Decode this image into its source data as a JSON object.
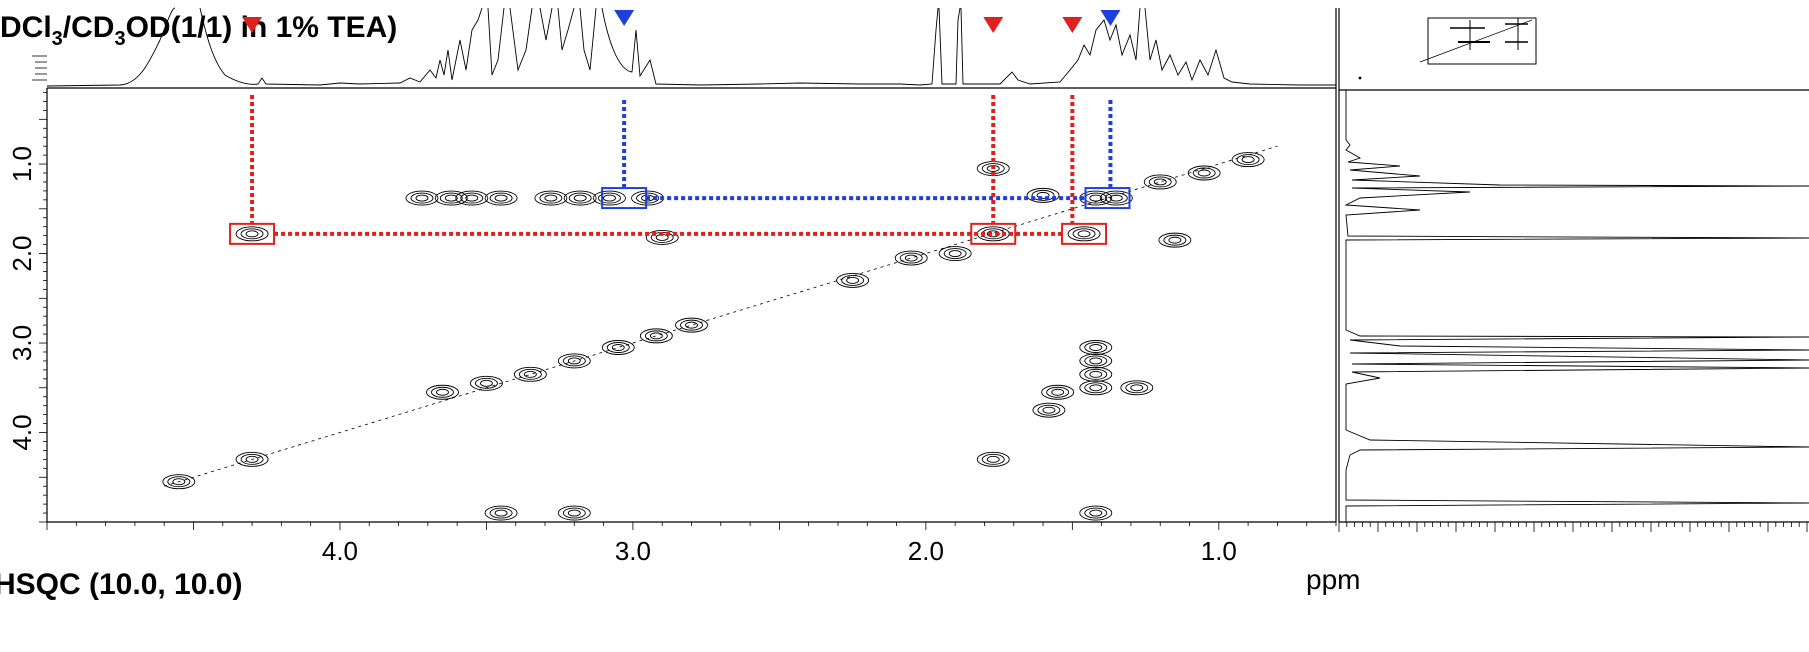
{
  "header": {
    "title_main": "DCl",
    "title_sub1": "3",
    "title_mid": "/CD",
    "title_sub2": "3",
    "title_end": "OD(1/1) in 1% TEA)"
  },
  "footer": {
    "text": "HSQC (10.0, 10.0)"
  },
  "chart_data": {
    "type": "scatter",
    "subtype": "2D COSY NMR contour plot",
    "x_axis": {
      "unit": "ppm",
      "reversed": true,
      "range": [
        5.0,
        0.6
      ],
      "ticks": [
        4.0,
        3.0,
        2.0,
        1.0
      ],
      "tick_labels": [
        "4.0",
        "3.0",
        "2.0",
        "1.0"
      ]
    },
    "y_axis": {
      "range": [
        0.15,
        5.0
      ],
      "ticks": [
        1.0,
        2.0,
        3.0,
        4.0
      ],
      "tick_labels": [
        "1.0",
        "2.0",
        "3.0",
        "4.0"
      ]
    },
    "cross_peaks": [
      {
        "x": 3.55,
        "y": 1.38
      },
      {
        "x": 3.45,
        "y": 1.38
      },
      {
        "x": 3.28,
        "y": 1.38
      },
      {
        "x": 3.18,
        "y": 1.38
      },
      {
        "x": 3.62,
        "y": 1.38
      },
      {
        "x": 3.72,
        "y": 1.38
      },
      {
        "x": 3.08,
        "y": 1.38
      },
      {
        "x": 2.95,
        "y": 1.38
      },
      {
        "x": 1.42,
        "y": 1.38
      },
      {
        "x": 1.35,
        "y": 1.38
      },
      {
        "x": 4.3,
        "y": 1.78
      },
      {
        "x": 1.77,
        "y": 1.78
      },
      {
        "x": 1.46,
        "y": 1.78
      },
      {
        "x": 1.77,
        "y": 1.05
      },
      {
        "x": 2.9,
        "y": 1.82
      },
      {
        "x": 2.05,
        "y": 2.05
      },
      {
        "x": 1.9,
        "y": 2.0
      },
      {
        "x": 2.25,
        "y": 2.3
      },
      {
        "x": 3.2,
        "y": 3.2
      },
      {
        "x": 3.05,
        "y": 3.05
      },
      {
        "x": 3.35,
        "y": 3.35
      },
      {
        "x": 3.5,
        "y": 3.45
      },
      {
        "x": 3.65,
        "y": 3.55
      },
      {
        "x": 2.92,
        "y": 2.92
      },
      {
        "x": 2.8,
        "y": 2.8
      },
      {
        "x": 1.42,
        "y": 3.05
      },
      {
        "x": 1.42,
        "y": 3.2
      },
      {
        "x": 1.42,
        "y": 3.35
      },
      {
        "x": 1.42,
        "y": 3.5
      },
      {
        "x": 1.28,
        "y": 3.5
      },
      {
        "x": 1.55,
        "y": 3.55
      },
      {
        "x": 1.58,
        "y": 3.75
      },
      {
        "x": 4.3,
        "y": 4.3
      },
      {
        "x": 4.55,
        "y": 4.55
      },
      {
        "x": 1.77,
        "y": 4.3
      },
      {
        "x": 1.6,
        "y": 1.35
      },
      {
        "x": 1.2,
        "y": 1.2
      },
      {
        "x": 1.05,
        "y": 1.1
      },
      {
        "x": 0.9,
        "y": 0.95
      },
      {
        "x": 1.15,
        "y": 1.85
      },
      {
        "x": 3.45,
        "y": 4.9
      },
      {
        "x": 3.2,
        "y": 4.9
      },
      {
        "x": 1.42,
        "y": 4.9
      }
    ],
    "diagonal": [
      [
        4.6,
        4.6
      ],
      [
        0.8,
        0.8
      ]
    ],
    "highlight_boxes": [
      {
        "color": "#e0201c",
        "x": 4.3,
        "y": 1.78
      },
      {
        "color": "#e0201c",
        "x": 1.77,
        "y": 1.78
      },
      {
        "color": "#e0201c",
        "x": 1.46,
        "y": 1.78
      },
      {
        "color": "#1f3fdc",
        "x": 3.03,
        "y": 1.38
      },
      {
        "color": "#1f3fdc",
        "x": 1.38,
        "y": 1.38
      }
    ],
    "markers": [
      {
        "color": "#e0201c",
        "x": 4.3
      },
      {
        "color": "#e0201c",
        "x": 1.77
      },
      {
        "color": "#e0201c",
        "x": 1.5
      },
      {
        "color": "#1f3fdc",
        "x": 3.03
      },
      {
        "color": "#1f3fdc",
        "x": 1.37
      }
    ],
    "connectors": {
      "red_horizontal_y": 1.78,
      "red_horizontal_x": [
        4.3,
        1.46
      ],
      "blue_horizontal_y": 1.38,
      "blue_horizontal_x": [
        3.03,
        1.38
      ],
      "red_vertical_x": [
        4.3,
        1.77,
        1.5
      ],
      "blue_vertical_x": [
        3.03,
        1.37
      ]
    }
  },
  "colors": {
    "red": "#e0201c",
    "blue": "#1f3fdc",
    "line": "#000000"
  }
}
